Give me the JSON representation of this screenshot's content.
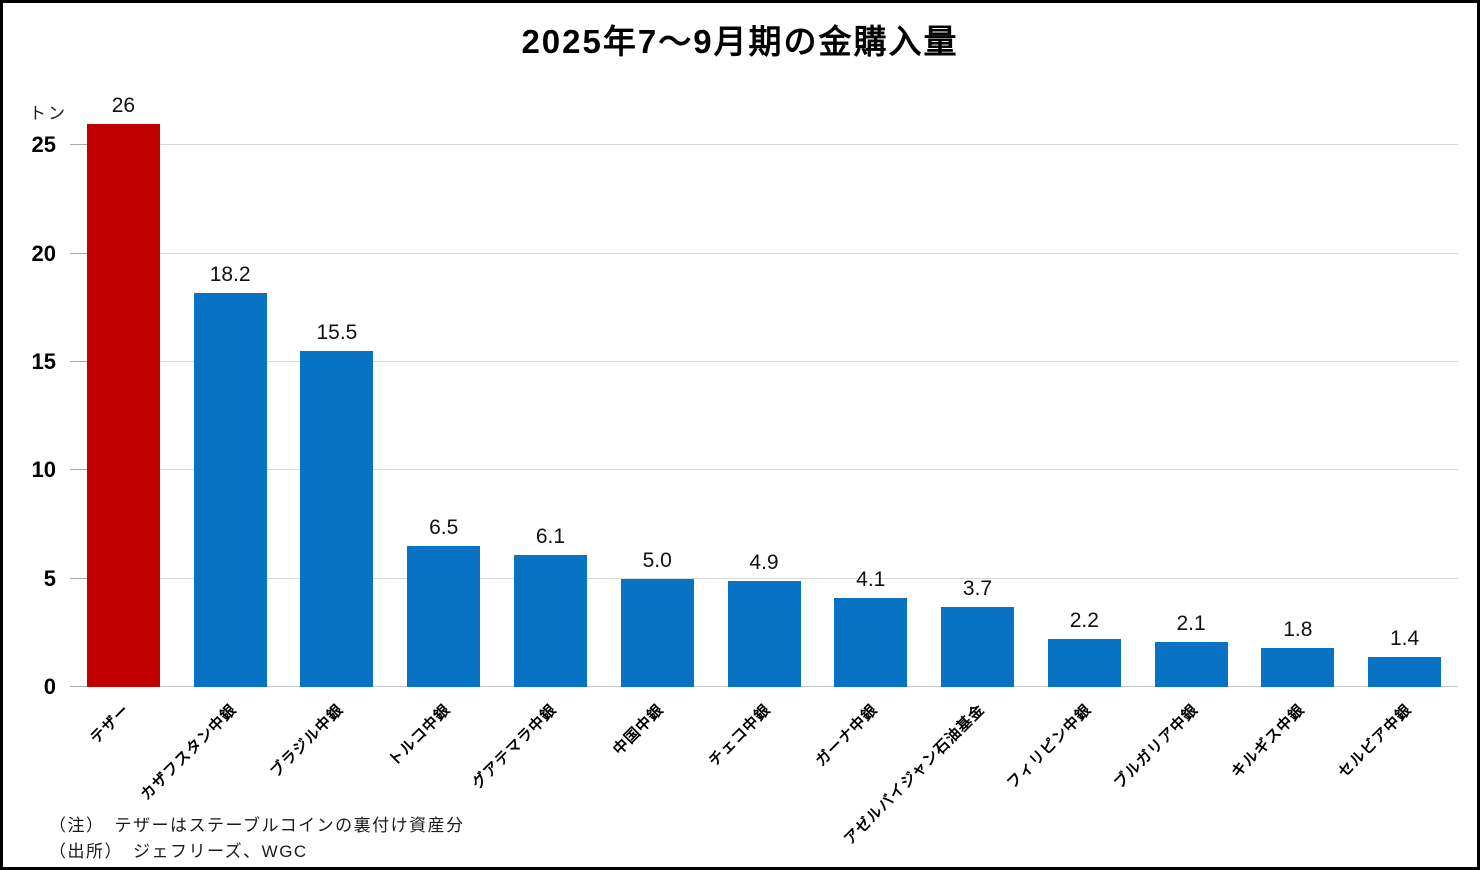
{
  "chart_data": {
    "type": "bar",
    "title": "2025年7〜9月期の金購入量",
    "unit_label": "トン",
    "categories": [
      "テザー",
      "カザフスタン中銀",
      "ブラジル中銀",
      "トルコ中銀",
      "グアテマラ中銀",
      "中国中銀",
      "チェコ中銀",
      "ガーナ中銀",
      "アゼルバイジャン石油基金",
      "フィリピン中銀",
      "ブルガリア中銀",
      "キルギス中銀",
      "セルビア中銀"
    ],
    "values": [
      26,
      18.2,
      15.5,
      6.5,
      6.1,
      5.0,
      4.9,
      4.1,
      3.7,
      2.2,
      2.1,
      1.8,
      1.4
    ],
    "value_labels": [
      "26",
      "18.2",
      "15.5",
      "6.5",
      "6.1",
      "5.0",
      "4.9",
      "4.1",
      "3.7",
      "2.2",
      "2.1",
      "1.8",
      "1.4"
    ],
    "highlight_index": 0,
    "colors": {
      "highlight": "#c00000",
      "default": "#0872c4",
      "gridline": "#d9d9d9"
    },
    "y_ticks": [
      0,
      5,
      10,
      15,
      20,
      25
    ],
    "ylim": [
      0,
      26.4
    ],
    "grid": true,
    "legend": "none",
    "xlabel": "",
    "ylabel": "トン"
  },
  "notes": {
    "annotation": "（注）　テザーはステーブルコインの裏付け資産分",
    "source": "（出所）　ジェフリーズ、WGC"
  }
}
